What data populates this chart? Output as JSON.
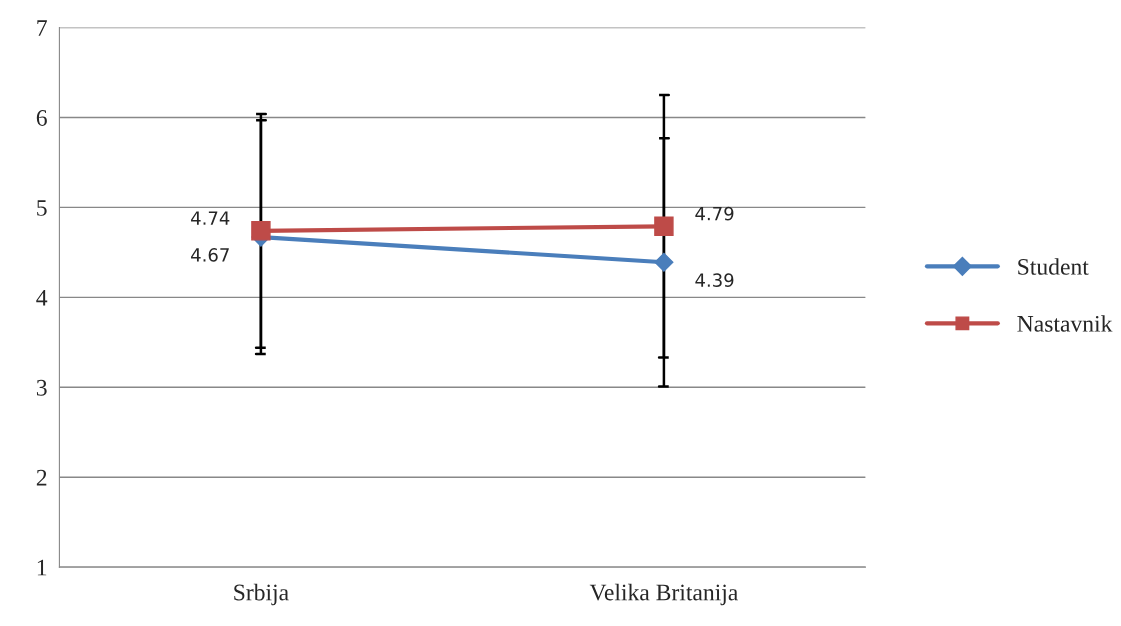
{
  "chart_data": {
    "type": "line",
    "categories": [
      "Srbija",
      "Velika Britanija"
    ],
    "series": [
      {
        "name": "Student",
        "color": "#4a7ebb",
        "marker": "diamond",
        "values": [
          4.67,
          4.39
        ],
        "errors": [
          1.3,
          1.38
        ]
      },
      {
        "name": "Nastavnik",
        "color": "#be4b48",
        "marker": "square",
        "values": [
          4.74,
          4.79
        ],
        "errors": [
          1.3,
          1.46
        ]
      }
    ],
    "ylim": [
      1,
      7
    ],
    "yticks": [
      1,
      2,
      3,
      4,
      5,
      6,
      7
    ],
    "grid": "y",
    "legend": "right",
    "data_labels": true,
    "line_style": "solid"
  }
}
